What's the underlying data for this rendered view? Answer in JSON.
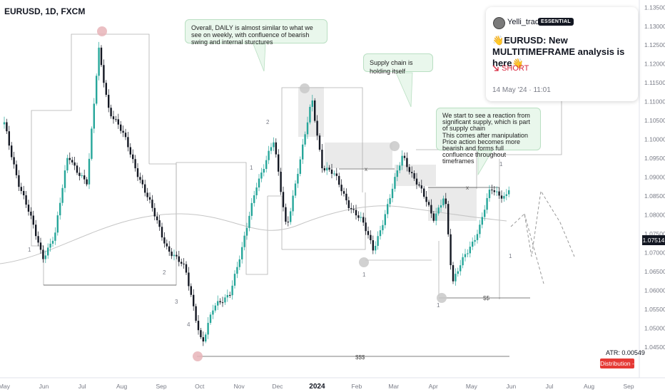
{
  "symbol": "EURUSD, 1D, FXCM",
  "notes": {
    "daily": "Overall, DAILY is almost similar to what we see on weekly, with confluence of bearish swing and internal sturctures",
    "supply": "Supply chain is holding itself",
    "reaction": "We start to see a reaction from significant supply, which is part of supply chain\nThis comes after manipulation\nPrice action becomes more bearish and forms full confluence throughout timeframes"
  },
  "idea_card": {
    "author": "Yelli_trades",
    "badge": "ESSENTIAL",
    "title": "EURUSD: New MULTITIMEFRAME analysis is here",
    "title_emoji": "👋",
    "direction": "SHORT",
    "direction_icon": "trend-down-arrow-icon",
    "date": "14 May '24 · 11:01"
  },
  "current_price": "1.07514",
  "atr_label": "ATR: 0.00549",
  "distribution_label": "Distribution - 1",
  "labels": {
    "sss": "$$$",
    "ss": "$$",
    "x": "x"
  },
  "colors": {
    "up": "#26a69a",
    "candle": "#131722",
    "note_bg": "#e9f7ec",
    "note_border": "#b9dfc2",
    "highlight": "#e8b4b8",
    "highlight_gray": "#c9c9c9",
    "distribution": "#e53935"
  },
  "chart_data": {
    "type": "candlestick",
    "x_axis_labels": [
      "May",
      "Jun",
      "Jul",
      "Aug",
      "Sep",
      "Oct",
      "Nov",
      "Dec",
      "2024",
      "Feb",
      "Mar",
      "Apr",
      "May",
      "Jun",
      "Jul",
      "Aug",
      "Sep"
    ],
    "y_axis_labels": [
      "1.04500",
      "1.05000",
      "1.05500",
      "1.06000",
      "1.06500",
      "1.07000",
      "1.07500",
      "1.08000",
      "1.08500",
      "1.09000",
      "1.09500",
      "1.10000",
      "1.10500",
      "1.11000",
      "1.11500",
      "1.12000",
      "1.12500",
      "1.13000",
      "1.13500"
    ],
    "ylim": [
      1.041,
      1.136
    ],
    "close_path": [
      [
        "2023-05-01",
        1.104
      ],
      [
        "2023-05-12",
        1.089
      ],
      [
        "2023-05-31",
        1.069
      ],
      [
        "2023-06-10",
        1.075
      ],
      [
        "2023-06-20",
        1.096
      ],
      [
        "2023-07-05",
        1.088
      ],
      [
        "2023-07-14",
        1.124
      ],
      [
        "2023-07-22",
        1.108
      ],
      [
        "2023-08-05",
        1.099
      ],
      [
        "2023-08-25",
        1.081
      ],
      [
        "2023-09-05",
        1.072
      ],
      [
        "2023-09-20",
        1.065
      ],
      [
        "2023-10-03",
        1.046
      ],
      [
        "2023-10-12",
        1.055
      ],
      [
        "2023-10-25",
        1.06
      ],
      [
        "2023-11-03",
        1.07
      ],
      [
        "2023-11-14",
        1.088
      ],
      [
        "2023-11-28",
        1.099
      ],
      [
        "2023-12-08",
        1.077
      ],
      [
        "2023-12-20",
        1.096
      ],
      [
        "2023-12-28",
        1.111
      ],
      [
        "2024-01-05",
        1.093
      ],
      [
        "2024-01-15",
        1.09
      ],
      [
        "2024-01-26",
        1.083
      ],
      [
        "2024-02-05",
        1.078
      ],
      [
        "2024-02-14",
        1.071
      ],
      [
        "2024-02-26",
        1.083
      ],
      [
        "2024-03-08",
        1.096
      ],
      [
        "2024-03-20",
        1.088
      ],
      [
        "2024-04-01",
        1.079
      ],
      [
        "2024-04-10",
        1.086
      ],
      [
        "2024-04-16",
        1.061
      ],
      [
        "2024-04-26",
        1.07
      ],
      [
        "2024-05-07",
        1.076
      ],
      [
        "2024-05-16",
        1.087
      ],
      [
        "2024-05-28",
        1.085
      ],
      [
        "2024-06-03",
        1.09
      ],
      [
        "2024-06-07",
        1.08
      ],
      [
        "2024-06-10",
        1.075
      ]
    ],
    "annotations": [
      "1",
      "2",
      "3",
      "4",
      "x",
      "$$$",
      "$$"
    ],
    "grid": false,
    "legend": "none"
  }
}
